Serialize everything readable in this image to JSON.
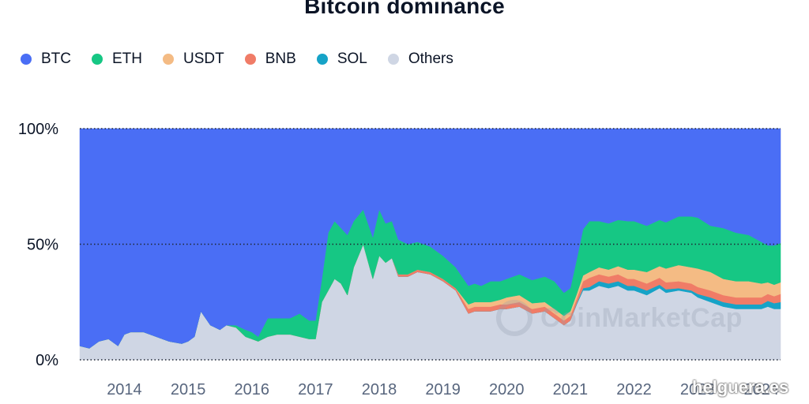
{
  "title": "Bitcoin dominance",
  "watermark": "CoinMarketCap",
  "credit": "helguera.es",
  "chart_data": {
    "type": "area",
    "stacked": true,
    "title": "Bitcoin dominance",
    "xlabel": "",
    "ylabel": "",
    "y_ticks": [
      "0%",
      "50%",
      "100%"
    ],
    "x_ticks": [
      "2014",
      "2015",
      "2016",
      "2017",
      "2018",
      "2019",
      "2020",
      "2021",
      "2022",
      "2023",
      "2024"
    ],
    "xlim": [
      2013.3,
      2024.3
    ],
    "ylim": [
      0,
      100
    ],
    "grid": "dotted at 0%, 50%, 100%",
    "legend_position": "top-left",
    "x": [
      2013.3,
      2013.45,
      2013.6,
      2013.75,
      2013.9,
      2014.0,
      2014.1,
      2014.3,
      2014.5,
      2014.7,
      2014.9,
      2015.0,
      2015.1,
      2015.2,
      2015.35,
      2015.5,
      2015.6,
      2015.75,
      2015.9,
      2016.0,
      2016.1,
      2016.25,
      2016.4,
      2016.6,
      2016.75,
      2016.9,
      2017.0,
      2017.1,
      2017.2,
      2017.3,
      2017.4,
      2017.5,
      2017.6,
      2017.75,
      2017.9,
      2018.0,
      2018.1,
      2018.2,
      2018.3,
      2018.45,
      2018.6,
      2018.8,
      2019.0,
      2019.2,
      2019.4,
      2019.5,
      2019.6,
      2019.75,
      2019.9,
      2020.0,
      2020.2,
      2020.4,
      2020.6,
      2020.75,
      2020.9,
      2021.0,
      2021.1,
      2021.2,
      2021.3,
      2021.45,
      2021.6,
      2021.75,
      2021.9,
      2022.0,
      2022.2,
      2022.4,
      2022.5,
      2022.7,
      2022.9,
      2023.0,
      2023.2,
      2023.4,
      2023.6,
      2023.8,
      2024.0,
      2024.1,
      2024.2,
      2024.3
    ],
    "series": [
      {
        "name": "Others",
        "color": "#cfd6e4",
        "values": [
          6,
          5,
          8,
          9,
          6,
          11,
          12,
          12,
          10,
          8,
          7,
          8,
          10,
          21,
          15,
          13,
          15,
          14,
          10,
          9,
          8,
          10,
          11,
          11,
          10,
          9,
          9,
          25,
          30,
          35,
          33,
          28,
          40,
          50,
          35,
          45,
          42,
          44,
          36,
          36,
          38,
          37,
          34,
          30,
          20,
          21,
          21,
          21,
          22,
          22,
          23,
          20,
          21,
          18,
          15,
          17,
          24,
          30,
          30,
          32,
          31,
          32,
          30,
          30,
          28,
          31,
          29,
          30,
          29,
          27,
          25,
          23,
          22,
          22,
          22,
          23,
          22,
          22
        ]
      },
      {
        "name": "SOL",
        "color": "#16a3c7",
        "values": [
          0,
          0,
          0,
          0,
          0,
          0,
          0,
          0,
          0,
          0,
          0,
          0,
          0,
          0,
          0,
          0,
          0,
          0,
          0,
          0,
          0,
          0,
          0,
          0,
          0,
          0,
          0,
          0,
          0,
          0,
          0,
          0,
          0,
          0,
          0,
          0,
          0,
          0,
          0,
          0,
          0,
          0,
          0,
          0,
          0,
          0,
          0,
          0,
          0,
          0,
          0,
          0,
          0,
          0,
          0,
          0,
          0.5,
          1,
          1.5,
          2,
          2,
          2,
          2,
          2,
          2,
          1.5,
          1.5,
          1,
          1,
          1.5,
          2,
          2,
          2,
          2,
          2,
          2.5,
          2.5,
          3
        ]
      },
      {
        "name": "BNB",
        "color": "#f07c67",
        "values": [
          0,
          0,
          0,
          0,
          0,
          0,
          0,
          0,
          0,
          0,
          0,
          0,
          0,
          0,
          0,
          0,
          0,
          0,
          0,
          0,
          0,
          0,
          0,
          0,
          0,
          0,
          0,
          0,
          0,
          0,
          0,
          0,
          0,
          0,
          0,
          0,
          0,
          0,
          1,
          1,
          1,
          1,
          1,
          1,
          2,
          2,
          2,
          2,
          2,
          2,
          2,
          2,
          2,
          2,
          2,
          2,
          2,
          3,
          4,
          3,
          3,
          3,
          3,
          3,
          3,
          3,
          3,
          3,
          3,
          3,
          3,
          3,
          3,
          3,
          3,
          3,
          3,
          3.5
        ]
      },
      {
        "name": "USDT",
        "color": "#f4bb84",
        "values": [
          0,
          0,
          0,
          0,
          0,
          0,
          0,
          0,
          0,
          0,
          0,
          0,
          0,
          0,
          0,
          0,
          0,
          0,
          0,
          0,
          0,
          0,
          0,
          0,
          0,
          0,
          0,
          0,
          0,
          0,
          0,
          0,
          0,
          0,
          0,
          0,
          0,
          0,
          0,
          0,
          0,
          0,
          0,
          0,
          2,
          2,
          2,
          2,
          2,
          3,
          3,
          2.5,
          2,
          2,
          2,
          2,
          2,
          2.5,
          2.5,
          3,
          3,
          3.5,
          4,
          4,
          5,
          5,
          6,
          7,
          7,
          8,
          8,
          7,
          7,
          7,
          6,
          5,
          5,
          5
        ]
      },
      {
        "name": "ETH",
        "color": "#16c784",
        "values": [
          0,
          0,
          0,
          0,
          0,
          0,
          0,
          0,
          0,
          0,
          0,
          0,
          0,
          0,
          0,
          0,
          0,
          1,
          3,
          3,
          2,
          8,
          7,
          7,
          10,
          8,
          8,
          10,
          25,
          25,
          24,
          26,
          20,
          15,
          18,
          20,
          17,
          16,
          15,
          13,
          12,
          11,
          10,
          9,
          8,
          8,
          7,
          9,
          8,
          8,
          9,
          10,
          11,
          12,
          10,
          10,
          15,
          20,
          22,
          20,
          20,
          20,
          21,
          21,
          20,
          20,
          20,
          21,
          22,
          22,
          20,
          22,
          21,
          20,
          18,
          16,
          17,
          17
        ]
      },
      {
        "name": "BTC",
        "color": "#4a6ef5",
        "values": [
          94,
          95,
          92,
          91,
          94,
          89,
          88,
          88,
          90,
          92,
          93,
          92,
          90,
          79,
          85,
          87,
          85,
          85,
          87,
          88,
          90,
          82,
          82,
          82,
          80,
          83,
          83,
          65,
          45,
          40,
          43,
          46,
          40,
          35,
          47,
          35,
          41,
          40,
          48,
          50,
          49,
          51,
          55,
          60,
          68,
          67,
          68,
          66,
          66,
          65,
          63,
          65.5,
          64,
          66,
          71,
          69,
          56.5,
          43.5,
          40,
          40,
          41,
          39.5,
          40,
          40,
          42,
          39.5,
          40.5,
          38,
          38,
          38.5,
          42,
          43,
          45,
          46,
          49,
          50.5,
          50.5,
          49.5
        ]
      }
    ]
  }
}
